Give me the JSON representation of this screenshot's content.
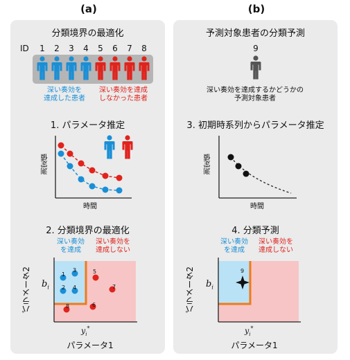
{
  "panel_a": {
    "label": "(a)",
    "title": "分類境界の最適化",
    "id_label": "ID",
    "ids": [
      "1",
      "2",
      "3",
      "4",
      "5",
      "6",
      "7",
      "8"
    ],
    "group_blue": [
      "深い奏効を",
      "達成した患者"
    ],
    "group_red": [
      "深い奏効を達成",
      "しなかった患者"
    ],
    "step1": "1. パラメータ推定",
    "step1_ylabel": "測定値",
    "step1_xlabel": "時間",
    "step2": "2. 分類境界の最適化",
    "region_blue": [
      "深い奏効",
      "を達成"
    ],
    "region_red": [
      "深い奏効を",
      "達成しない"
    ],
    "axis_y": "パラメータ2",
    "axis_x": "パラメータ1",
    "bi": "b",
    "bi_sub": "i",
    "yi": "y",
    "yi_sub": "i",
    "yi_sup": "*",
    "points_blue": [
      "1",
      "2",
      "3",
      "4"
    ],
    "points_red": [
      "5",
      "6",
      "7",
      "8"
    ]
  },
  "panel_b": {
    "label": "(b)",
    "title": "予測対象患者の分類予測",
    "patient_id": "9",
    "patient_desc": [
      "深い奏効を達成するかどうかの",
      "予測対象患者"
    ],
    "step3": "3. 初期時系列からパラメータ推定",
    "step3_ylabel": "測定値",
    "step3_xlabel": "時間",
    "step4": "4. 分類予測",
    "region_blue": [
      "深い奏効",
      "を達成"
    ],
    "region_red": [
      "深い奏効を",
      "達成しない"
    ],
    "axis_y": "パラメータ2",
    "axis_x": "パラメータ1",
    "bi": "b",
    "bi_sub": "i",
    "yi": "y",
    "yi_sub": "i",
    "yi_sup": "*",
    "point": "9"
  },
  "colors": {
    "blue": "#1a8fd6",
    "red": "#e0231c",
    "orange": "#f07a1a",
    "blue_region": "#b9e2f6",
    "red_region": "#f7c5c5",
    "gray_person": "#555555"
  }
}
